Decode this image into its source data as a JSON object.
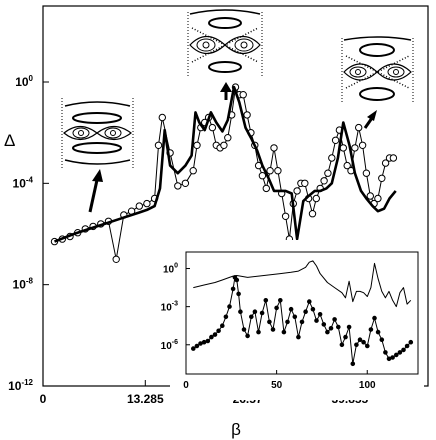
{
  "chart_data": [
    {
      "type": "line",
      "xlabel": "β",
      "ylabel": "Δ",
      "xlim": [
        0,
        50
      ],
      "ylim_log10": [
        -12,
        3
      ],
      "x_ticks": [
        {
          "value": 0,
          "label": "0"
        },
        {
          "value": 13.285,
          "label": "13.285"
        },
        {
          "value": 26.57,
          "label": "26.57"
        },
        {
          "value": 39.855,
          "label": "39.855"
        }
      ],
      "y_ticks": [
        {
          "value": -12,
          "label": "10",
          "exp": "-12"
        },
        {
          "value": -8,
          "label": "10",
          "exp": "-8"
        },
        {
          "value": -4,
          "label": "10",
          "exp": "-4"
        },
        {
          "value": 0,
          "label": "10",
          "exp": "0"
        }
      ],
      "y_scale": "log",
      "legend": "none",
      "grid": false,
      "series": [
        {
          "style": "line-with-open-circles",
          "x": [
            1.5,
            2.5,
            3.5,
            4.5,
            5.5,
            6.5,
            7.5,
            8.5,
            9.5,
            10.5,
            11.5,
            12.5,
            13.5,
            14.5,
            15,
            15.5,
            16.5,
            17.5,
            18.5,
            19.5,
            20,
            20.5,
            21,
            21.5,
            22,
            22.5,
            23,
            23.5,
            24,
            24.5,
            25,
            25.5,
            26,
            26.5,
            27,
            27.5,
            28,
            28.5,
            29,
            29.5,
            30,
            30.5,
            31,
            31.5,
            32,
            32.5,
            33,
            33.5,
            34,
            34.5,
            35,
            35.5,
            36,
            36.5,
            37,
            37.5,
            38,
            38.5,
            39,
            39.5,
            40,
            40.5,
            41,
            41.5,
            42,
            42.5,
            43,
            43.5,
            44,
            44.5,
            45,
            45.5
          ],
          "log10_y": [
            -6.3,
            -6.2,
            -6.1,
            -5.95,
            -5.8,
            -5.7,
            -5.6,
            -5.5,
            -7.0,
            -5.25,
            -5.1,
            -4.9,
            -4.8,
            -4.6,
            -2.5,
            -1.4,
            -2.8,
            -4.1,
            -4.0,
            -3.5,
            -2.5,
            -1.8,
            -1.6,
            -1.4,
            -1.8,
            -2.5,
            -2.6,
            -2.5,
            -2.2,
            -1.3,
            -0.2,
            -0.5,
            -0.5,
            -1.3,
            -2.0,
            -2.5,
            -3.3,
            -3.7,
            -4.2,
            -3.5,
            -2.6,
            -3.5,
            -4.4,
            -5.3,
            -6.2,
            -4.8,
            -4.3,
            -4.0,
            -4.0,
            -4.6,
            -5.2,
            -4.6,
            -4.2,
            -3.9,
            -3.6,
            -3.0,
            -2.3,
            -1.9,
            -2.6,
            -3.3,
            -3.5,
            -2.6,
            -1.8,
            -2.5,
            -3.6,
            -4.5,
            -4.8,
            -4.6,
            -3.8,
            -3.2,
            -3.0,
            -3.0
          ]
        },
        {
          "style": "thick-line",
          "x": [
            1.5,
            4,
            6,
            8,
            10,
            11.5,
            12.5,
            13.5,
            14.5,
            15.2,
            15.8,
            16.5,
            17.5,
            18.5,
            19.3,
            19.8,
            20.3,
            21,
            21.8,
            22.5,
            23.3,
            24,
            24.8,
            25.5,
            26.3,
            27,
            27.8,
            28.5,
            29.3,
            30,
            30.8,
            31.5,
            32.3,
            33,
            33.8,
            34.5,
            35.3,
            36,
            36.8,
            37.5,
            38.3,
            39,
            39.8,
            40.5,
            41.3,
            42,
            42.8,
            43.5,
            44.3,
            45,
            45.8
          ],
          "log10_y": [
            -6.3,
            -6.0,
            -5.8,
            -5.6,
            -5.4,
            -5.25,
            -5.15,
            -5.05,
            -4.9,
            -4.2,
            -1.9,
            -3.3,
            -3.6,
            -3.3,
            -2.9,
            -1.2,
            -1.6,
            -1.9,
            -1.2,
            -1.6,
            -1.95,
            -1.5,
            -0.2,
            -0.8,
            -1.8,
            -2.2,
            -2.7,
            -3.3,
            -3.8,
            -4.3,
            -4.3,
            -4.3,
            -4.4,
            -6.2,
            -4.7,
            -4.5,
            -4.3,
            -4.3,
            -4.2,
            -4.0,
            -3.0,
            -1.6,
            -2.5,
            -3.6,
            -4.3,
            -4.6,
            -4.9,
            -5.1,
            -5.0,
            -4.6,
            -4.3
          ]
        }
      ]
    },
    {
      "type": "line",
      "y_scale": "log",
      "xlim": [
        0,
        128
      ],
      "ylim_log10": [
        -8.3,
        1.3
      ],
      "x_ticks": [
        {
          "value": 0,
          "label": "0"
        },
        {
          "value": 50,
          "label": "50"
        },
        {
          "value": 100,
          "label": "100"
        }
      ],
      "y_ticks": [
        {
          "value": 0,
          "label": "10",
          "exp": "0"
        },
        {
          "value": -3,
          "label": "10",
          "exp": "-3"
        },
        {
          "value": -6,
          "label": "10",
          "exp": "-6"
        }
      ],
      "legend": "none",
      "grid": false,
      "series": [
        {
          "style": "thin-line",
          "x": [
            4,
            10,
            16,
            20,
            24,
            26,
            28,
            30,
            34,
            40,
            46,
            52,
            58,
            62,
            66,
            68,
            70,
            72,
            74,
            78,
            82,
            86,
            88,
            90,
            92,
            94,
            96,
            98,
            100,
            102,
            104,
            106,
            108,
            110,
            112,
            114,
            116,
            118,
            120,
            122,
            124
          ],
          "log10_y": [
            -1.5,
            -1.3,
            -1.1,
            -0.9,
            -0.7,
            -0.6,
            -0.55,
            -0.6,
            -0.7,
            -0.6,
            -0.5,
            -0.4,
            -0.3,
            -0.2,
            0.1,
            0.5,
            0.6,
            0.2,
            -0.4,
            -1.1,
            -1.5,
            -1.9,
            -2.3,
            -1.0,
            -2.6,
            -1.8,
            -1.8,
            -1.9,
            -2.2,
            -1.5,
            0.4,
            -0.8,
            -1.8,
            -2.3,
            -1.8,
            -2.5,
            -3.0,
            -1.9,
            -1.5,
            -2.8,
            -2.5
          ]
        },
        {
          "style": "line-with-filled-circles",
          "x": [
            4,
            6,
            8,
            10,
            12,
            14,
            16,
            18,
            20,
            22,
            24,
            26,
            27,
            28,
            29,
            30,
            32,
            34,
            36,
            38,
            40,
            42,
            44,
            46,
            48,
            50,
            52,
            54,
            56,
            58,
            60,
            62,
            64,
            66,
            68,
            70,
            72,
            74,
            76,
            78,
            80,
            82,
            84,
            86,
            88,
            90,
            92,
            94,
            96,
            98,
            100,
            102,
            104,
            106,
            108,
            110,
            112,
            114,
            116,
            118,
            120,
            122,
            124
          ],
          "log10_y": [
            -6.3,
            -6.1,
            -5.9,
            -5.8,
            -5.7,
            -5.4,
            -5.2,
            -4.9,
            -4.5,
            -3.8,
            -3.0,
            -1.6,
            -0.7,
            -0.9,
            -2.0,
            -3.4,
            -4.8,
            -5.3,
            -3.8,
            -3.4,
            -5.0,
            -3.5,
            -2.5,
            -4.2,
            -4.8,
            -3.1,
            -2.5,
            -5.0,
            -4.2,
            -3.2,
            -3.8,
            -5.4,
            -4.2,
            -3.4,
            -2.6,
            -3.2,
            -4.1,
            -3.6,
            -4.4,
            -5.0,
            -4.7,
            -4.0,
            -4.6,
            -6.0,
            -5.4,
            -4.6,
            -7.5,
            -6.0,
            -5.6,
            -5.8,
            -6.1,
            -4.8,
            -3.9,
            -5.0,
            -5.6,
            -6.6,
            -7.1,
            -7.0,
            -6.8,
            -6.6,
            -6.4,
            -6.1,
            -5.8
          ]
        }
      ]
    }
  ]
}
